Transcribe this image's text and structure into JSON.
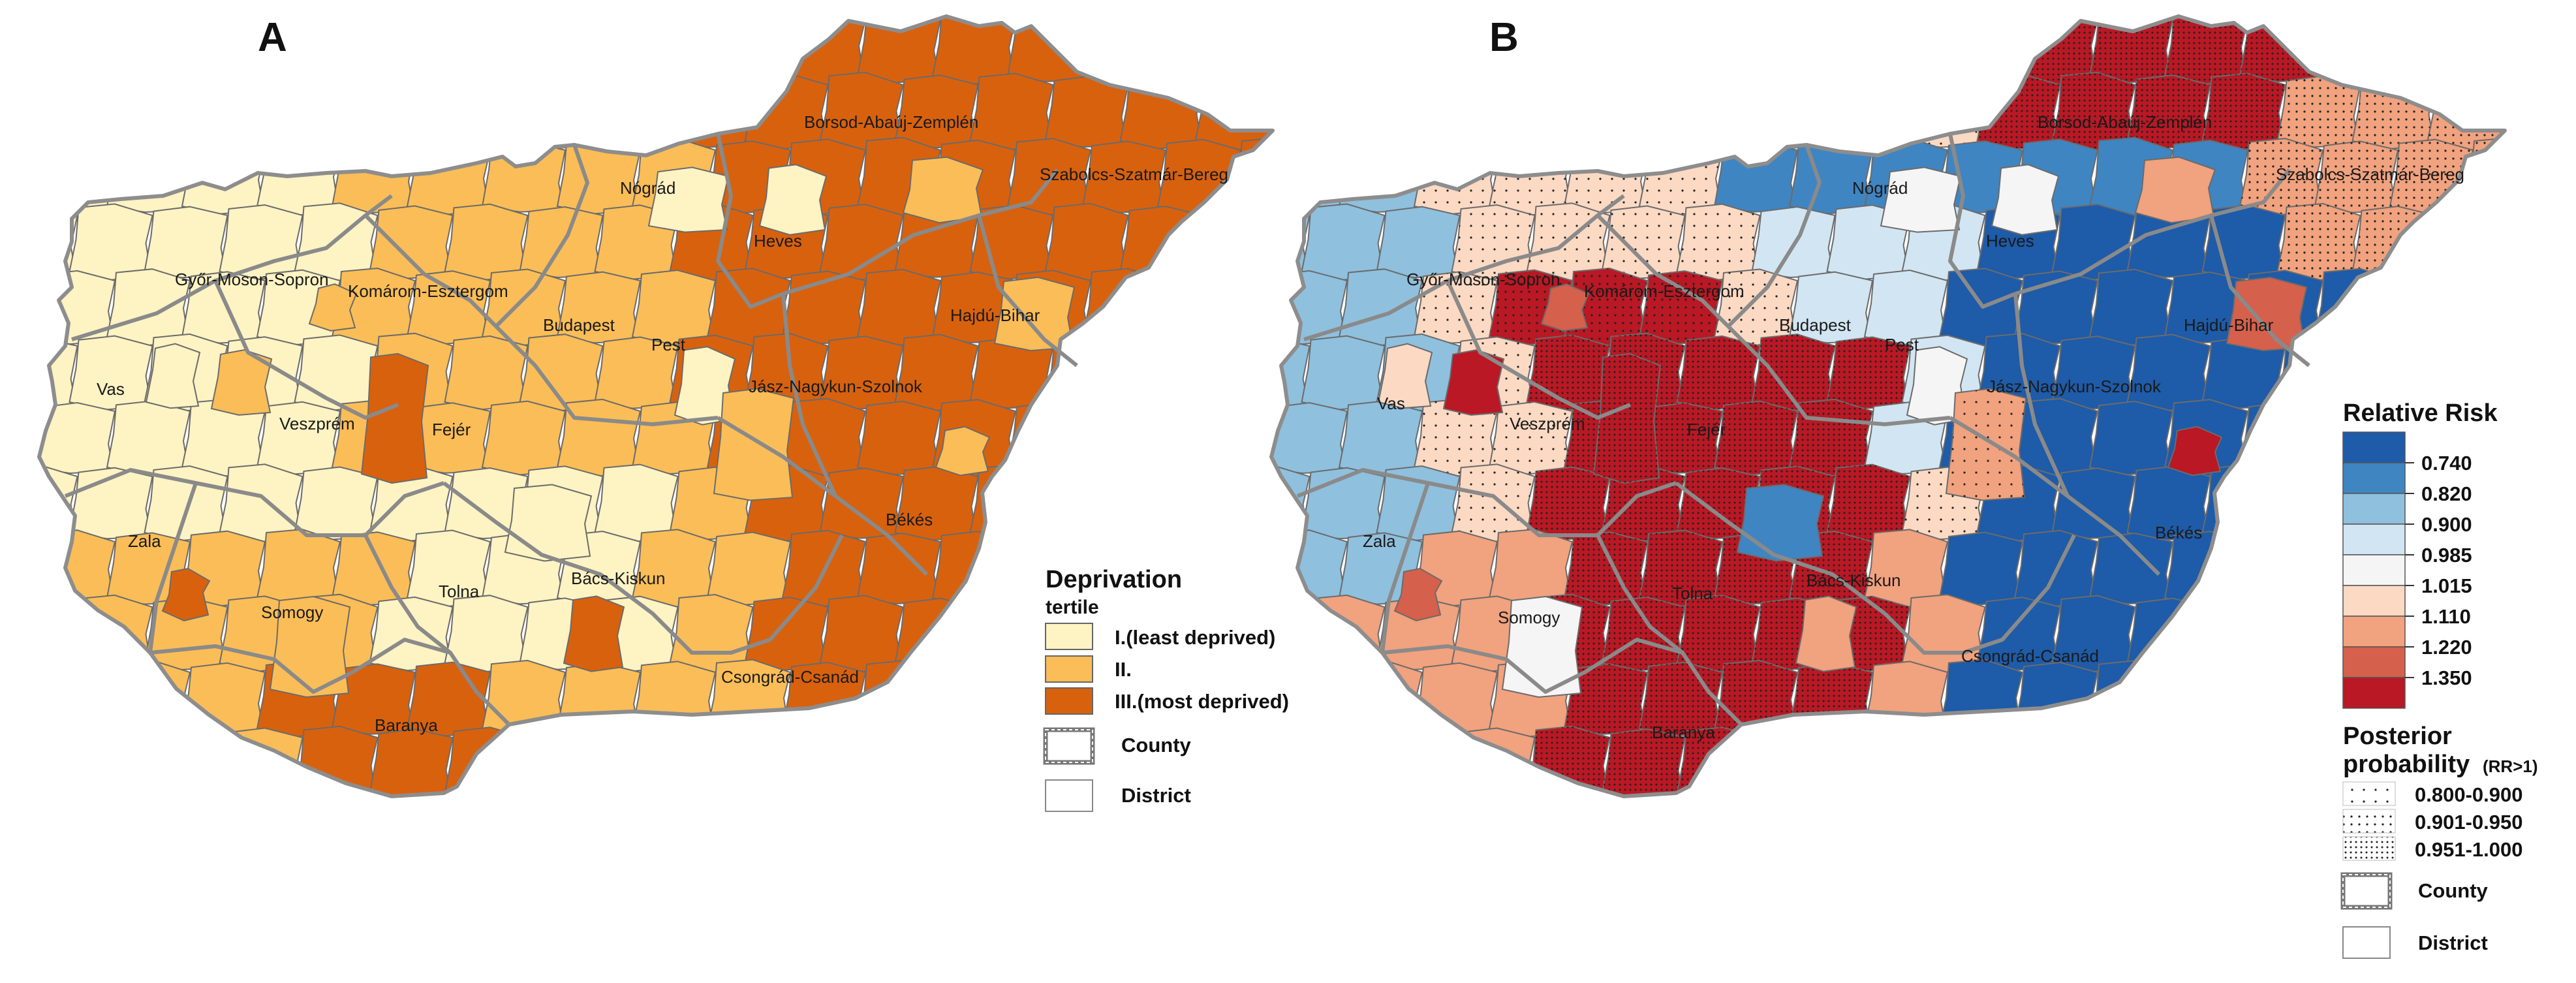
{
  "colors": {
    "dep_least": "#fef3c3",
    "dep_mid": "#fbbd57",
    "dep_most": "#d8610e",
    "rr_0": "#1e5ba8",
    "rr_1": "#3f85c2",
    "rr_2": "#8fc0de",
    "rr_3": "#d2e5f2",
    "rr_4": "#f5f5f5",
    "rr_5": "#fbd9c3",
    "rr_6": "#f1a27e",
    "rr_7": "#d5604b",
    "rr_8": "#b91824",
    "county_border": "#8a8a8a",
    "district_border": "#6b6b6b"
  },
  "panel_a": {
    "label": "A",
    "county_labels": {
      "gyor": "Győr-Moson-Sopron",
      "komarom": "Komárom-Esztergom",
      "nograd": "Nógrád",
      "borsod": "Borsod-Abaúj-Zemplén",
      "szabolcs": "Szabolcs-Szatmár-Bereg",
      "heves": "Heves",
      "budapest": "Budapest",
      "pest": "Pest",
      "hajdu": "Hajdú-Bihar",
      "vas": "Vas",
      "veszprem": "Veszprém",
      "fejer": "Fejér",
      "jasz": "Jász-Nagykun-Szolnok",
      "zala": "Zala",
      "bekes": "Békés",
      "somogy": "Somogy",
      "tolna": "Tolna",
      "bacs": "Bács-Kiskun",
      "csongrad": "Csongrád-Csanád",
      "baranya": "Baranya"
    },
    "legend": {
      "title": "Deprivation",
      "subtitle": "tertile",
      "items": [
        "I.(least deprived)",
        "II.",
        "III.(most deprived)"
      ],
      "county": "County",
      "district": "District"
    }
  },
  "panel_b": {
    "label": "B",
    "county_labels": {
      "gyor": "Győr-Moson-Sopron",
      "komarom": "Komárom-Esztergom",
      "nograd": "Nógrád",
      "borsod": "Borsod-Abaúj-Zemplén",
      "szabolcs": "Szabolcs-Szatmár-Bereg",
      "heves": "Heves",
      "budapest": "Budapest",
      "pest": "Pest",
      "hajdu": "Hajdú-Bihar",
      "vas": "Vas",
      "veszprem": "Veszprém",
      "fejer": "Fejér",
      "jasz": "Jász-Nagykun-Szolnok",
      "zala": "Zala",
      "bekes": "Békés",
      "somogy": "Somogy",
      "tolna": "Tolna",
      "bacs": "Bács-Kiskun",
      "csongrad": "Csongrád-Csanád",
      "baranya": "Baranya"
    },
    "legend": {
      "rr_title": "Relative Risk",
      "rr_breaks": [
        "0.740",
        "0.820",
        "0.900",
        "0.985",
        "1.015",
        "1.110",
        "1.220",
        "1.350"
      ],
      "pp_title": "Posterior",
      "pp_title2": "probability",
      "pp_suffix": "(RR>1)",
      "pp_items": [
        "0.800-0.900",
        "0.901-0.950",
        "0.951-1.000"
      ],
      "county": "County",
      "district": "District"
    }
  }
}
